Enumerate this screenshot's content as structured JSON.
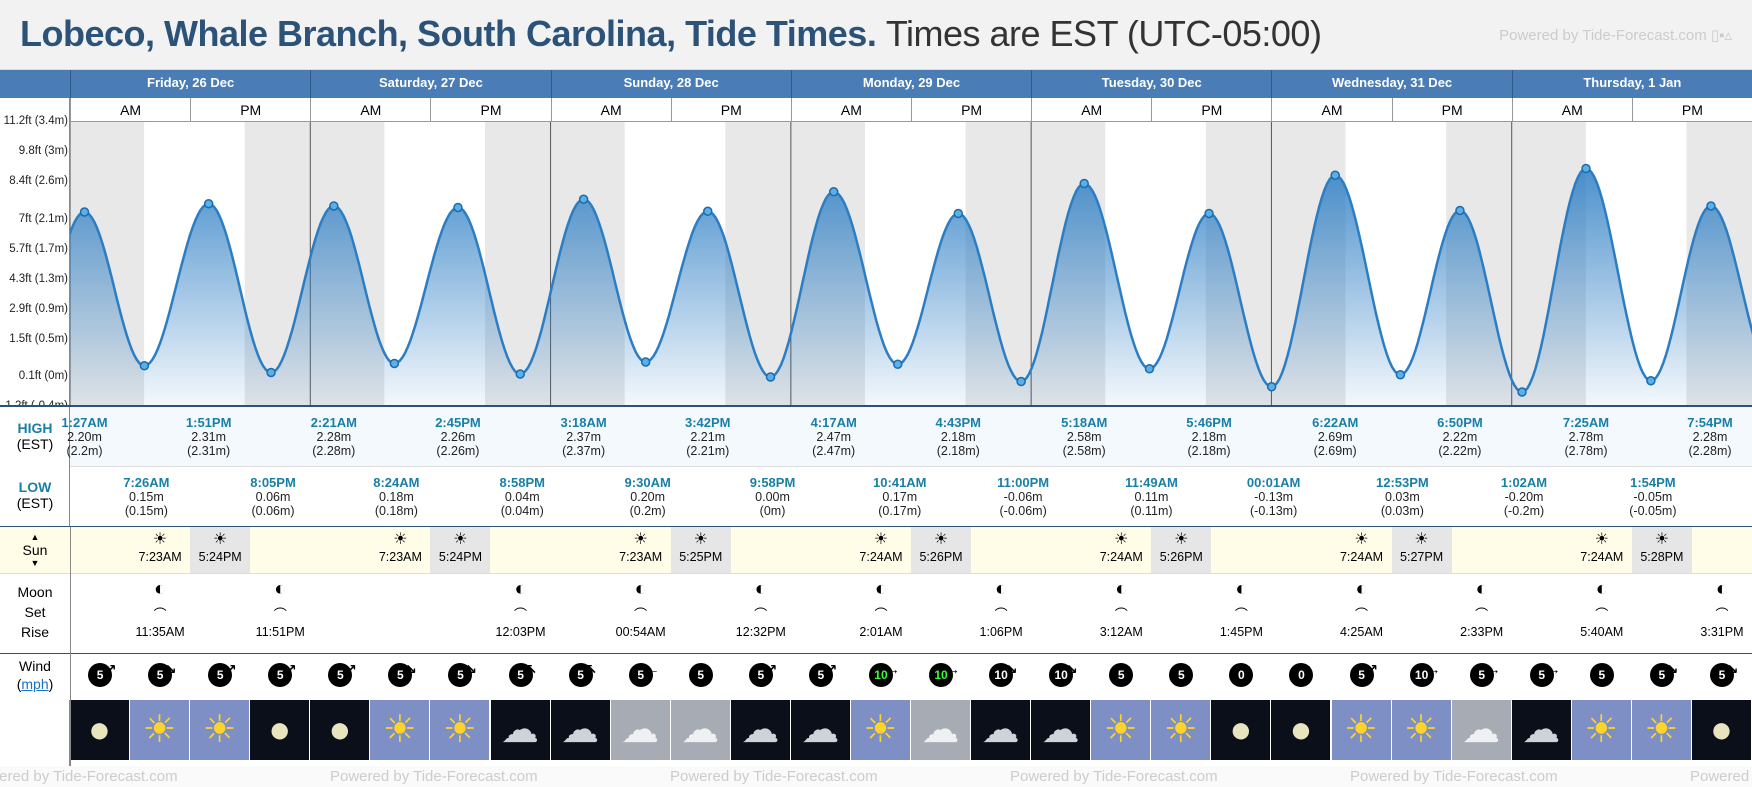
{
  "title": {
    "location": "Lobeco, Whale Branch, South Carolina, Tide Times.",
    "timezone": "Times are EST (UTC-05:00)"
  },
  "powered_by": "Powered by Tide-Forecast.com",
  "days": [
    {
      "label": "Friday, 26 Dec"
    },
    {
      "label": "Saturday, 27 Dec"
    },
    {
      "label": "Sunday, 28 Dec"
    },
    {
      "label": "Monday, 29 Dec"
    },
    {
      "label": "Tuesday, 30 Dec"
    },
    {
      "label": "Wednesday, 31 Dec"
    },
    {
      "label": "Thursday, 1 Jan"
    }
  ],
  "am_label": "AM",
  "pm_label": "PM",
  "y_axis_labels": [
    "11.2ft (3.4m)",
    "9.8ft (3m)",
    "8.4ft (2.6m)",
    "7ft (2.1m)",
    "5.7ft (1.7m)",
    "4.3ft (1.3m)",
    "2.9ft (0.9m)",
    "1.5ft (0.5m)",
    "0.1ft (0m)",
    "-1.2ft (-0.4m)"
  ],
  "row_labels": {
    "high": "HIGH",
    "high_tz": "(EST)",
    "low": "LOW",
    "low_tz": "(EST)",
    "sun": "Sun",
    "moon": "Moon",
    "set": "Set",
    "rise": "Rise",
    "wind": "Wind",
    "wind_unit": "mph"
  },
  "chart_data": {
    "type": "area",
    "title": "",
    "xlabel": "",
    "ylabel": "",
    "ylim": [
      -0.4,
      3.4
    ],
    "x_unit": "hours from 26 Dec 00:00 EST",
    "series": [
      {
        "points": [
          [
            1.45,
            2.2
          ],
          [
            7.43,
            0.15
          ],
          [
            13.85,
            2.31
          ],
          [
            20.08,
            0.06
          ],
          [
            26.35,
            2.28
          ],
          [
            32.4,
            0.18
          ],
          [
            38.75,
            2.26
          ],
          [
            44.97,
            0.04
          ],
          [
            51.3,
            2.37
          ],
          [
            57.5,
            0.2
          ],
          [
            63.7,
            2.21
          ],
          [
            69.97,
            0.0
          ],
          [
            76.28,
            2.47
          ],
          [
            82.68,
            0.17
          ],
          [
            88.72,
            2.18
          ],
          [
            95.0,
            -0.06
          ],
          [
            101.3,
            2.58
          ],
          [
            107.82,
            0.11
          ],
          [
            113.77,
            2.18
          ],
          [
            120.02,
            -0.13
          ],
          [
            126.37,
            2.69
          ],
          [
            132.88,
            0.03
          ],
          [
            138.83,
            2.22
          ],
          [
            145.03,
            -0.2
          ],
          [
            151.42,
            2.78
          ],
          [
            157.9,
            -0.05
          ],
          [
            163.9,
            2.28
          ]
        ]
      }
    ]
  },
  "high_tides": [
    {
      "time": "1:27AM",
      "ft": "2.20m",
      "m": "(2.2m)"
    },
    {
      "time": "1:51PM",
      "ft": "2.31m",
      "m": "(2.31m)"
    },
    {
      "time": "2:21AM",
      "ft": "2.28m",
      "m": "(2.28m)"
    },
    {
      "time": "2:45PM",
      "ft": "2.26m",
      "m": "(2.26m)"
    },
    {
      "time": "3:18AM",
      "ft": "2.37m",
      "m": "(2.37m)"
    },
    {
      "time": "3:42PM",
      "ft": "2.21m",
      "m": "(2.21m)"
    },
    {
      "time": "4:17AM",
      "ft": "2.47m",
      "m": "(2.47m)"
    },
    {
      "time": "4:43PM",
      "ft": "2.18m",
      "m": "(2.18m)"
    },
    {
      "time": "5:18AM",
      "ft": "2.58m",
      "m": "(2.58m)"
    },
    {
      "time": "5:46PM",
      "ft": "2.18m",
      "m": "(2.18m)"
    },
    {
      "time": "6:22AM",
      "ft": "2.69m",
      "m": "(2.69m)"
    },
    {
      "time": "6:50PM",
      "ft": "2.22m",
      "m": "(2.22m)"
    },
    {
      "time": "7:25AM",
      "ft": "2.78m",
      "m": "(2.78m)"
    },
    {
      "time": "7:54PM",
      "ft": "2.28m",
      "m": "(2.28m)"
    }
  ],
  "low_tides": [
    {
      "time": "7:26AM",
      "ft": "0.15m",
      "m": "(0.15m)"
    },
    {
      "time": "8:05PM",
      "ft": "0.06m",
      "m": "(0.06m)"
    },
    {
      "time": "8:24AM",
      "ft": "0.18m",
      "m": "(0.18m)"
    },
    {
      "time": "8:58PM",
      "ft": "0.04m",
      "m": "(0.04m)"
    },
    {
      "time": "9:30AM",
      "ft": "0.20m",
      "m": "(0.2m)"
    },
    {
      "time": "9:58PM",
      "ft": "0.00m",
      "m": "(0m)"
    },
    {
      "time": "10:41AM",
      "ft": "0.17m",
      "m": "(0.17m)"
    },
    {
      "time": "11:00PM",
      "ft": "-0.06m",
      "m": "(-0.06m)"
    },
    {
      "time": "11:49AM",
      "ft": "0.11m",
      "m": "(0.11m)"
    },
    {
      "time": "00:01AM",
      "ft": "-0.13m",
      "m": "(-0.13m)"
    },
    {
      "time": "12:53PM",
      "ft": "0.03m",
      "m": "(0.03m)"
    },
    {
      "time": "1:02AM",
      "ft": "-0.20m",
      "m": "(-0.2m)"
    },
    {
      "time": "1:54PM",
      "ft": "-0.05m",
      "m": "(-0.05m)"
    }
  ],
  "sun": [
    {
      "rise": "7:23AM",
      "set": "5:24PM"
    },
    {
      "rise": "7:23AM",
      "set": "5:24PM"
    },
    {
      "rise": "7:23AM",
      "set": "5:25PM"
    },
    {
      "rise": "7:24AM",
      "set": "5:26PM"
    },
    {
      "rise": "7:24AM",
      "set": "5:26PM"
    },
    {
      "rise": "7:24AM",
      "set": "5:27PM"
    },
    {
      "rise": "7:24AM",
      "set": "5:28PM"
    }
  ],
  "moon": [
    {
      "am": "11:35AM",
      "pm": "11:51PM"
    },
    {
      "am": "",
      "pm": "12:03PM"
    },
    {
      "am": "00:54AM",
      "pm": "12:32PM"
    },
    {
      "am": "2:01AM",
      "pm": "1:06PM"
    },
    {
      "am": "3:12AM",
      "pm": "1:45PM"
    },
    {
      "am": "4:25AM",
      "pm": "2:33PM"
    },
    {
      "am": "5:40AM",
      "pm": "3:31PM"
    }
  ],
  "wind": [
    "5",
    "5",
    "5",
    "5",
    "5",
    "5",
    "5",
    "5",
    "5",
    "5",
    "5",
    "5",
    "5",
    "10",
    "10",
    "10",
    "10",
    "5",
    "5",
    "0",
    "0",
    "5",
    "10",
    "5",
    "5",
    "5",
    "5",
    "5"
  ],
  "wind_green": [
    false,
    false,
    false,
    false,
    false,
    false,
    false,
    false,
    false,
    false,
    false,
    false,
    false,
    true,
    true,
    false,
    false,
    false,
    false,
    false,
    false,
    false,
    false,
    false,
    false,
    false,
    false,
    false
  ],
  "wind_arrows": [
    "↗",
    "↘",
    "↗",
    "↗",
    "↗",
    "↘",
    "↘",
    "↖",
    "↖",
    "←",
    "↑",
    "↗",
    "↗",
    "→",
    "→",
    "↘",
    "↘",
    "↓",
    "↓",
    "↓",
    "↓",
    "↗",
    "→",
    "→",
    "→",
    "↓",
    "↘",
    "↘"
  ],
  "weather": [
    "moon",
    "sun",
    "sun",
    "moon",
    "moon",
    "sun",
    "sun",
    "cloud-night",
    "cloud-night",
    "cloud",
    "cloud",
    "cloud-night",
    "cloud-night",
    "sun",
    "cloud",
    "cloud-night",
    "cloud-night",
    "sun",
    "sun",
    "moon",
    "moon",
    "sun",
    "sun",
    "cloud",
    "cloud-night",
    "sun",
    "sun",
    "moon"
  ],
  "colors": {
    "header_blue": "#4a7db5",
    "tide_line": "#2b7dc4",
    "title_blue": "#2c5278",
    "tide_time": "#1a7fa6"
  }
}
